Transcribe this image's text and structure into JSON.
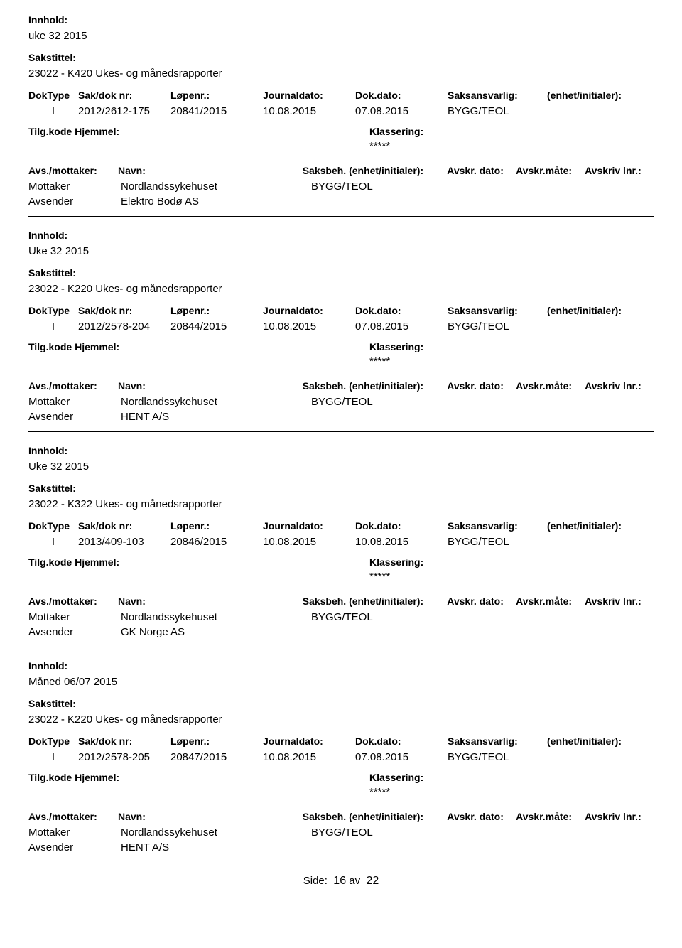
{
  "labels": {
    "innhold": "Innhold:",
    "sakstittel": "Sakstittel:",
    "doktype": "DokType",
    "sakdok": "Sak/dok nr:",
    "lopenr": "Løpenr.:",
    "journaldato": "Journaldato:",
    "dokdato": "Dok.dato:",
    "saksansvarlig": "Saksansvarlig:",
    "enhet": "(enhet/initialer):",
    "tilgkode": "Tilg.kode",
    "hjemmel": "Hjemmel:",
    "klassering": "Klassering:",
    "avsmottaker": "Avs./mottaker:",
    "navn": "Navn:",
    "saksbeh": "Saksbeh.",
    "saksbeh_enhet": "(enhet/initialer):",
    "avskrdato": "Avskr. dato:",
    "avskrmate": "Avskr.måte:",
    "avskrivlnr": "Avskriv lnr.:",
    "mottaker": "Mottaker",
    "avsender": "Avsender",
    "side": "Side:",
    "av": "av"
  },
  "records": [
    {
      "innhold": "uke 32 2015",
      "sakstittel": "23022 - K420 Ukes- og månedsrapporter",
      "doktype": "I",
      "sakdok": "2012/2612-175",
      "lopenr": "20841/2015",
      "journaldato": "10.08.2015",
      "dokdato": "07.08.2015",
      "saksansvarlig": "BYGG/TEOL",
      "klassering": "*****",
      "mottaker_navn": "Nordlandssykehuset",
      "mottaker_saksbeh": "BYGG/TEOL",
      "avsender_navn": "Elektro Bodø AS"
    },
    {
      "innhold": "Uke 32 2015",
      "sakstittel": "23022 - K220 Ukes- og månedsrapporter",
      "doktype": "I",
      "sakdok": "2012/2578-204",
      "lopenr": "20844/2015",
      "journaldato": "10.08.2015",
      "dokdato": "07.08.2015",
      "saksansvarlig": "BYGG/TEOL",
      "klassering": "*****",
      "mottaker_navn": "Nordlandssykehuset",
      "mottaker_saksbeh": "BYGG/TEOL",
      "avsender_navn": "HENT A/S"
    },
    {
      "innhold": "Uke 32 2015",
      "sakstittel": "23022 - K322 Ukes- og månedsrapporter",
      "doktype": "I",
      "sakdok": "2013/409-103",
      "lopenr": "20846/2015",
      "journaldato": "10.08.2015",
      "dokdato": "10.08.2015",
      "saksansvarlig": "BYGG/TEOL",
      "klassering": "*****",
      "mottaker_navn": "Nordlandssykehuset",
      "mottaker_saksbeh": "BYGG/TEOL",
      "avsender_navn": "GK Norge AS"
    },
    {
      "innhold": "Måned 06/07 2015",
      "sakstittel": "23022 - K220 Ukes- og månedsrapporter",
      "doktype": "I",
      "sakdok": "2012/2578-205",
      "lopenr": "20847/2015",
      "journaldato": "10.08.2015",
      "dokdato": "07.08.2015",
      "saksansvarlig": "BYGG/TEOL",
      "klassering": "*****",
      "mottaker_navn": "Nordlandssykehuset",
      "mottaker_saksbeh": "BYGG/TEOL",
      "avsender_navn": "HENT A/S"
    }
  ],
  "footer": {
    "page": "16",
    "total": "22"
  }
}
